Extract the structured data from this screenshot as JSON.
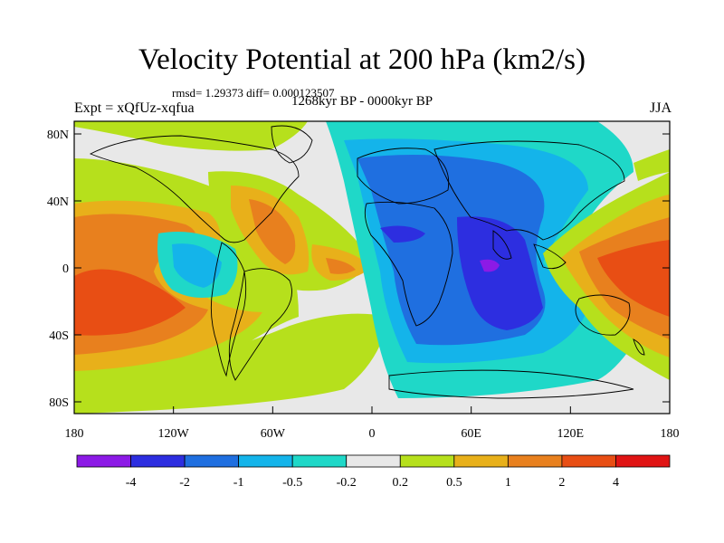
{
  "title": "Velocity Potential at 200 hPa (km2/s)",
  "stats": "rmsd= 1.29373 diff= 0.000123507",
  "period": "1268kyr BP - 0000kyr BP",
  "experiment": "Expt = xQfUz-xqfua",
  "season": "JJA",
  "y_axis": [
    "80N",
    "40N",
    "0",
    "40S",
    "80S"
  ],
  "x_axis": [
    "180",
    "120W",
    "60W",
    "0",
    "60E",
    "120E",
    "180"
  ],
  "colorbar": {
    "colors": [
      "#8c1ae6",
      "#2d2ee0",
      "#1f6fe0",
      "#14b4ea",
      "#1fd8c8",
      "#e8e8e8",
      "#b6e01c",
      "#e8b01a",
      "#e8801e",
      "#e84e14",
      "#e01414"
    ],
    "labels": [
      "-4",
      "-2",
      "-1",
      "-0.5",
      "-0.2",
      "0.2",
      "0.5",
      "1",
      "2",
      "4"
    ]
  }
}
